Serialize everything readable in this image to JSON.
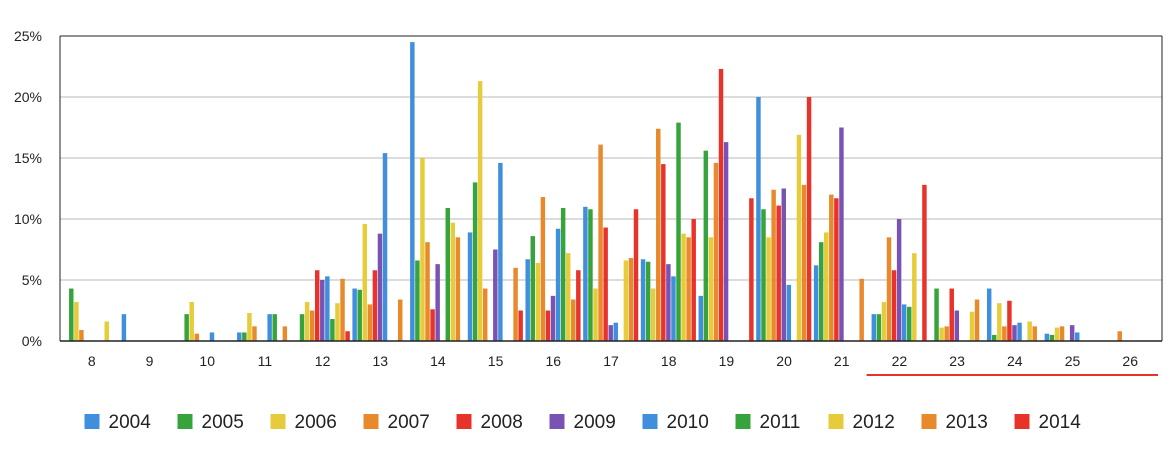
{
  "chart_data": {
    "type": "bar",
    "title": "",
    "xlabel": "",
    "ylabel": "",
    "ylim": [
      0,
      25
    ],
    "y_ticks": [
      "0%",
      "5%",
      "10%",
      "15%",
      "20%",
      "25%"
    ],
    "y_tick_values": [
      0,
      5,
      10,
      15,
      20,
      25
    ],
    "grid": true,
    "legend_position": "bottom",
    "categories": [
      "8",
      "9",
      "10",
      "11",
      "12",
      "13",
      "14",
      "15",
      "16",
      "17",
      "18",
      "19",
      "20",
      "21",
      "22",
      "23",
      "24",
      "25",
      "26"
    ],
    "highlight_range": [
      "22",
      "26"
    ],
    "highlight_color": "#e8332b",
    "series": [
      {
        "name": "2004",
        "color": "#3f8fdc",
        "values": [
          0,
          2.2,
          0,
          0.7,
          0,
          4.3,
          24.5,
          8.9,
          6.7,
          11,
          6.7,
          3.7,
          20,
          6.2,
          2.2,
          0,
          4.3,
          0.6,
          0
        ]
      },
      {
        "name": "2005",
        "color": "#36a33c",
        "values": [
          4.3,
          0,
          2.2,
          0.7,
          2.2,
          4.2,
          6.6,
          13,
          8.6,
          10.8,
          6.5,
          15.6,
          10.8,
          8.1,
          2.2,
          4.3,
          0.5,
          0.5,
          0
        ]
      },
      {
        "name": "2006",
        "color": "#e6cc3a",
        "values": [
          3.2,
          0,
          3.2,
          2.3,
          3.2,
          9.6,
          15,
          21.3,
          6.4,
          4.3,
          4.3,
          8.5,
          8.5,
          8.9,
          3.2,
          1.1,
          3.1,
          1.1,
          0
        ]
      },
      {
        "name": "2007",
        "color": "#e8892b",
        "values": [
          0.9,
          0,
          0.6,
          1.2,
          2.5,
          3,
          8.1,
          4.3,
          11.8,
          16.1,
          17.4,
          14.6,
          12.4,
          12,
          8.5,
          1.2,
          1.2,
          1.2,
          0.8
        ]
      },
      {
        "name": "2008",
        "color": "#e8332b",
        "values": [
          0,
          0,
          0,
          0,
          5.8,
          5.8,
          2.6,
          0,
          2.5,
          9.3,
          14.5,
          22.3,
          11.1,
          11.7,
          5.8,
          4.3,
          3.3,
          0,
          0
        ]
      },
      {
        "name": "2009",
        "color": "#7a52b3",
        "values": [
          0,
          0,
          0,
          0,
          5,
          8.8,
          6.3,
          7.5,
          3.7,
          1.3,
          6.3,
          16.3,
          12.5,
          17.5,
          10,
          2.5,
          1.3,
          1.3,
          0
        ]
      },
      {
        "name": "2010",
        "color": "#3f8fdc",
        "values": [
          0,
          0,
          0.7,
          2.2,
          5.3,
          15.4,
          0,
          14.6,
          9.2,
          1.5,
          5.3,
          0,
          4.6,
          0,
          3,
          0,
          1.5,
          0.7,
          0
        ]
      },
      {
        "name": "2011",
        "color": "#36a33c",
        "values": [
          0,
          0,
          0,
          2.2,
          1.8,
          0,
          10.9,
          0,
          10.9,
          0,
          17.9,
          0,
          0,
          0,
          2.8,
          0,
          0,
          0,
          0
        ]
      },
      {
        "name": "2012",
        "color": "#e6cc3a",
        "values": [
          1.6,
          0,
          0,
          0,
          3.1,
          0,
          9.7,
          0,
          7.2,
          6.6,
          8.8,
          0,
          16.9,
          0,
          7.2,
          2.4,
          1.6,
          0,
          0
        ]
      },
      {
        "name": "2013",
        "color": "#e8892b",
        "values": [
          0,
          0,
          0,
          1.2,
          5.1,
          3.4,
          8.5,
          6,
          3.4,
          6.8,
          8.5,
          0,
          12.8,
          5.1,
          0,
          3.4,
          1.2,
          0,
          0
        ]
      },
      {
        "name": "2014",
        "color": "#e8332b",
        "values": [
          0,
          0,
          0,
          0,
          0.8,
          0,
          0,
          2.5,
          5.8,
          10.8,
          10,
          11.7,
          20,
          0,
          12.8,
          0,
          0,
          0,
          0
        ]
      }
    ]
  }
}
